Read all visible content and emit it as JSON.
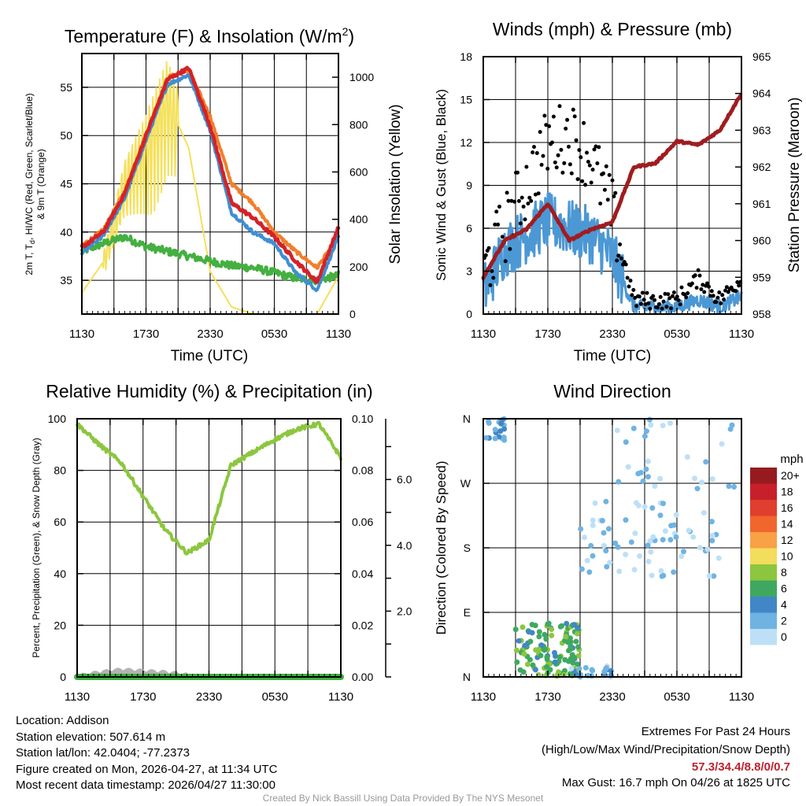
{
  "colors": {
    "temp": "#d42227",
    "dewpoint": "#3f8fd2",
    "windchill": "#44b040",
    "temp9m": "#f07f2c",
    "insolation": "#f5e05a",
    "wind": "#4c98d4",
    "gust": "#000000",
    "pressure": "#a01c20",
    "rh": "#8cc63f",
    "precip": "#3fae3f",
    "snow": "#b3b3b3"
  },
  "xticks": [
    "1130",
    "1730",
    "2330",
    "0530",
    "1130"
  ],
  "panels": {
    "temp": {
      "title": "Temperature (F) & Insolation (W/m",
      "title_sup": "2",
      "title_close": ")",
      "xlabel": "Time (UTC)",
      "ylabel_left_line1": "2m T, T",
      "ylabel_left_sub": "d",
      "ylabel_left_line1b": ", HI/WC (Red, Green, Scarlet/Blue)",
      "ylabel_left_line2": "& 9m T (Orange)",
      "ylabel_right": "Solar Insolation (Yellow)",
      "yticks_left": [
        "35",
        "40",
        "45",
        "50",
        "55"
      ],
      "yticks_right": [
        "0",
        "200",
        "400",
        "600",
        "800",
        "1000"
      ]
    },
    "wind": {
      "title": "Winds (mph) & Pressure (mb)",
      "xlabel": "Time (UTC)",
      "ylabel_left": "Sonic Wind & Gust (Blue, Black)",
      "ylabel_right": "Station Pressure (Maroon)",
      "yticks_left": [
        "0",
        "3",
        "6",
        "9",
        "12",
        "15",
        "18"
      ],
      "yticks_right": [
        "958",
        "959",
        "960",
        "961",
        "962",
        "963",
        "964",
        "965"
      ]
    },
    "rh": {
      "title": "Relative Humidity (%) & Precipitation (in)",
      "ylabel_left": "Percent, Precipitation (Green), & Snow Depth (Gray)",
      "yticks_left": [
        "0",
        "20",
        "40",
        "60",
        "80",
        "100"
      ],
      "yticks_right": [
        "0.00",
        "0.02",
        "0.04",
        "0.06",
        "0.08",
        "0.10"
      ],
      "yticks_far": [
        "2.0",
        "4.0",
        "6.0"
      ]
    },
    "dir": {
      "title": "Wind Direction",
      "ylabel_left": "Direction (Colored By Speed)",
      "yticks_left": [
        "N",
        "E",
        "S",
        "W",
        "N"
      ],
      "legend_title": "mph",
      "legend_labels": [
        "20+",
        "18",
        "16",
        "14",
        "12",
        "10",
        "8",
        "6",
        "4",
        "2",
        "0"
      ],
      "legend_colors": [
        "#961b1f",
        "#c8202a",
        "#e03e2f",
        "#f0662d",
        "#f9a145",
        "#f2dd5c",
        "#8cc63f",
        "#3fa860",
        "#4187c7",
        "#6fb3e2",
        "#bde0f6"
      ]
    }
  },
  "chart_data": [
    {
      "type": "line",
      "title": "Temperature (F) & Insolation (W/m2)",
      "xlabel": "Time (UTC)",
      "ylabel": "2m T, Td, HI/WC (Red, Green, Scarlet/Blue) & 9m T (Orange)",
      "ylabel_right": "Solar Insolation (Yellow)",
      "x": [
        0,
        2,
        4,
        6,
        8,
        10,
        12,
        14,
        16,
        18,
        20,
        22,
        24
      ],
      "xticklabels": [
        "1130",
        "1730",
        "2330",
        "0530",
        "1130"
      ],
      "ylim": [
        31.5,
        58.5
      ],
      "ylim_right": [
        0,
        1100
      ],
      "series": [
        {
          "name": "2m Temperature",
          "values": [
            38.4,
            40.0,
            44.0,
            50.0,
            55.8,
            57.0,
            51.0,
            43.0,
            41.5,
            39.5,
            37.0,
            34.8,
            40.5
          ]
        },
        {
          "name": "Wind Chill",
          "values": [
            37.8,
            39.6,
            43.5,
            49.5,
            55.3,
            56.3,
            50.5,
            42.0,
            40.0,
            38.8,
            35.8,
            34.0,
            39.5
          ]
        },
        {
          "name": "9m Temperature",
          "values": [
            38.6,
            40.2,
            44.2,
            50.2,
            56.0,
            56.8,
            52.0,
            45.0,
            43.0,
            40.0,
            38.0,
            36.3,
            39.5
          ]
        },
        {
          "name": "Dewpoint",
          "values": [
            38.0,
            38.8,
            39.5,
            38.5,
            38.0,
            37.5,
            37.0,
            36.5,
            36.3,
            35.8,
            35.2,
            35.0,
            35.5
          ]
        },
        {
          "name": "Solar Insolation",
          "axis": "right",
          "values": [
            90,
            220,
            550,
            700,
            900,
            700,
            180,
            30,
            0,
            0,
            0,
            0,
            160
          ]
        }
      ]
    },
    {
      "type": "line",
      "title": "Winds (mph) & Pressure (mb)",
      "xlabel": "Time (UTC)",
      "ylabel": "Sonic Wind & Gust (Blue, Black)",
      "ylabel_right": "Station Pressure (Maroon)",
      "x": [
        0,
        2,
        4,
        6,
        8,
        10,
        12,
        14,
        16,
        18,
        20,
        22,
        24
      ],
      "xticklabels": [
        "1130",
        "1730",
        "2330",
        "0530",
        "1130"
      ],
      "ylim": [
        0,
        18
      ],
      "ylim_right": [
        958,
        965
      ],
      "series": [
        {
          "name": "Sonic Wind",
          "values": [
            1.5,
            4.5,
            5.5,
            6.5,
            6.0,
            5.5,
            4.0,
            0.5,
            0.5,
            0.5,
            1.0,
            0.5,
            1.2
          ]
        },
        {
          "name": "Gust",
          "values": [
            3.0,
            6.0,
            9.0,
            12.0,
            12.5,
            11.0,
            7.0,
            1.0,
            0.9,
            1.0,
            2.5,
            1.0,
            2.5
          ]
        },
        {
          "name": "Station Pressure",
          "axis": "right",
          "values": [
            959.0,
            960.0,
            960.3,
            961.0,
            960.0,
            960.3,
            960.5,
            962.0,
            962.1,
            962.7,
            962.6,
            963.0,
            964.0
          ]
        }
      ]
    },
    {
      "type": "line",
      "title": "Relative Humidity (%) & Precipitation (in)",
      "ylabel": "Percent, Precipitation (Green), & Snow Depth (Gray)",
      "x": [
        0,
        2,
        4,
        6,
        8,
        10,
        12,
        14,
        16,
        18,
        20,
        22,
        24
      ],
      "xticklabels": [
        "1130",
        "1730",
        "2330",
        "0530",
        "1130"
      ],
      "ylim": [
        0,
        100
      ],
      "ylim_right": [
        0,
        0.1
      ],
      "series": [
        {
          "name": "Relative Humidity",
          "values": [
            98,
            90,
            83,
            70,
            57,
            48,
            53,
            82,
            87,
            92,
            96,
            98,
            85
          ]
        },
        {
          "name": "Precipitation",
          "axis": "right",
          "values": [
            0,
            0,
            0,
            0,
            0,
            0,
            0,
            0,
            0,
            0,
            0,
            0,
            0
          ]
        },
        {
          "name": "Snow Depth",
          "values": [
            0,
            1.5,
            2.5,
            2.0,
            1.5,
            0.5,
            0,
            0,
            0,
            0,
            0,
            0,
            0
          ]
        }
      ]
    },
    {
      "type": "scatter",
      "title": "Wind Direction",
      "ylabel": "Direction (Colored By Speed)",
      "xticklabels": [
        "1130",
        "1730",
        "2330",
        "0530",
        "1130"
      ],
      "yticklabels": [
        "N",
        "E",
        "S",
        "W",
        "N"
      ],
      "ylim": [
        0,
        360
      ],
      "colorbar": {
        "label": "mph",
        "levels": [
          "0",
          "2",
          "4",
          "6",
          "8",
          "10",
          "12",
          "14",
          "16",
          "18",
          "20+"
        ]
      },
      "clusters": [
        {
          "time_range": [
            0,
            2
          ],
          "direction_range": [
            330,
            360
          ],
          "speed_range": [
            2,
            4
          ]
        },
        {
          "time_range": [
            3,
            9
          ],
          "direction_range": [
            0,
            75
          ],
          "speed_range": [
            4,
            8
          ]
        },
        {
          "time_range": [
            8,
            12
          ],
          "direction_range": [
            0,
            15
          ],
          "speed_range": [
            0,
            4
          ]
        },
        {
          "time_range": [
            9,
            22
          ],
          "direction_range": [
            140,
            245
          ],
          "speed_range": [
            0,
            2
          ]
        },
        {
          "time_range": [
            12,
            24
          ],
          "direction_range": [
            260,
            360
          ],
          "speed_range": [
            0,
            2
          ]
        }
      ]
    }
  ],
  "info": {
    "location": "Location: Addison",
    "elevation": "Station elevation: 507.614 m",
    "latlon": "Station lat/lon: 42.0404; -77.2373",
    "created": "Figure created on Mon, 2026-04-27, at 11:34 UTC",
    "recent": "Most recent data timestamp: 2026/04/27 11:30:00"
  },
  "extremes": {
    "title": "Extremes For Past 24 Hours",
    "subtitle": "(High/Low/Max Wind/Precipitation/Snow Depth)",
    "values": "57.3/34.4/8.8/0/0.7",
    "gust": "Max Gust: 16.7 mph On 04/26 at 1825 UTC"
  },
  "credit": "Created By Nick Bassill Using Data Provided By The NYS Mesonet"
}
